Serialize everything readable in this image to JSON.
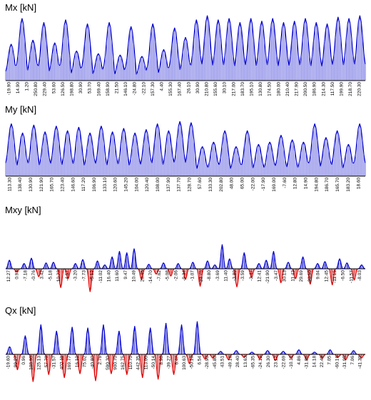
{
  "colors": {
    "positive": "#0000cc",
    "negative": "#dd0000",
    "axis": "#000000"
  },
  "chart_data": [
    {
      "type": "area",
      "title": "Mx [kN]",
      "positive_color": "#0000cc",
      "negative_color": "#dd0000",
      "labels": [
        "-19.90",
        "14.90",
        "1.20",
        "250.80",
        "229.40",
        "53.60",
        "126.50",
        "198.80",
        "30.90",
        "53.70",
        "169.40",
        "158.90",
        "21.50",
        "146.10",
        "-24.80",
        "-22.10",
        "157.30",
        "4.40",
        "155.30",
        "167.40",
        "26.10",
        "30.90",
        "210.80",
        "155.60",
        "30.10",
        "217.00",
        "183.70",
        "195.10",
        "130.80",
        "174.50",
        "180.00",
        "210.40",
        "217.90",
        "200.50",
        "186.90",
        "214.30",
        "117.50",
        "199.90",
        "218.70",
        "220.30"
      ],
      "peaks": [
        135,
        230,
        150,
        215,
        140,
        225,
        110,
        210,
        100,
        215,
        95,
        200,
        90,
        210,
        115,
        195,
        160,
        225,
        240,
        225,
        230,
        215,
        230,
        220,
        230,
        215,
        220,
        230,
        215,
        210,
        235,
        230,
        240
      ]
    },
    {
      "type": "area",
      "title": "My [kN]",
      "positive_color": "#0000cc",
      "negative_color": "#dd0000",
      "labels": [
        "113.30",
        "138.40",
        "130.90",
        "121.90",
        "165.70",
        "123.40",
        "146.60",
        "117.20",
        "106.90",
        "133.10",
        "120.60",
        "145.20",
        "104.00",
        "120.40",
        "108.00",
        "137.90",
        "137.70",
        "128.70",
        "57.60",
        "133.30",
        "202.80",
        "48.00",
        "65.00",
        "-22.00",
        "-17.90",
        "169.00",
        "-7.60",
        "12.80",
        "14.90",
        "194.80",
        "186.70",
        "165.70",
        "183.20",
        "18.60"
      ],
      "peaks": [
        230,
        190,
        225,
        195,
        220,
        200,
        215,
        190,
        220,
        195,
        210,
        190,
        205,
        230,
        200,
        240,
        235,
        130,
        150,
        200,
        130,
        200,
        140,
        150,
        180,
        160,
        150,
        230,
        170,
        200,
        140,
        230
      ]
    },
    {
      "type": "area",
      "title": "Mxy [kN]",
      "positive_color": "#0000cc",
      "negative_color": "#dd0000",
      "labels": [
        "12.27",
        "0.93",
        "-7.18",
        "-0.76",
        "3.42",
        "-5.18",
        "10.23",
        "-4.57",
        "-3.20",
        "-7.73",
        "-5.12",
        "-11.02",
        "16.40",
        "11.60",
        "9.47",
        "10.49",
        "20.45",
        "-14.70",
        "-7.62",
        "-5.08",
        "-2.06",
        "-9.34",
        "-1.07",
        "-21.75",
        "-8.80",
        "-3.69",
        "11.40",
        "-3.80",
        "-3.59",
        "-3.47",
        "12.41",
        "-21.90",
        "-3.47",
        "30.13",
        "11.43",
        "29.69",
        "-20.50",
        "9.04",
        "12.45",
        "-11.15",
        "-6.50",
        "-11.57",
        "-8.03"
      ],
      "peaks": [
        1.3,
        -0.5,
        0.8,
        1.6,
        -1.2,
        0.9,
        1.0,
        -2.8,
        -1.5,
        0.8,
        1.4,
        -3.4,
        1.2,
        0.6,
        1.8,
        2.6,
        2.4,
        3.0,
        -1.6,
        0.7,
        -0.8,
        0.9,
        -1.1,
        0.8,
        -1.6,
        1.0,
        -2.6,
        1.2,
        0.6,
        3.6,
        1.5,
        -2.7,
        2.4,
        -1.3,
        0.8,
        1.3,
        2.6,
        -2.1,
        1.0,
        -1.5,
        1.8,
        -2.3,
        0.8,
        1.1,
        -2.4,
        1.5,
        0.9,
        -1.7,
        0.6
      ]
    },
    {
      "type": "area",
      "title": "Qx [kN]",
      "positive_color": "#0000cc",
      "negative_color": "#dd0000",
      "labels": [
        "-19.60",
        "99.27",
        "0.96",
        "108.90",
        "125.13",
        "57.70",
        "-31.57",
        "402.11",
        "169.77",
        "16.10",
        "75.02",
        "-40.80",
        "2.76",
        "590.30",
        "900.70",
        "162.75",
        "110.70",
        "442.35",
        "113.00",
        "-50.14",
        "8.98",
        "-39.27",
        "6.47",
        "100.63",
        "-50.10",
        "6.54",
        "-28.90",
        "-45.80",
        "43.51",
        "-49.16",
        "28.40",
        "13.63",
        "-65.35",
        "-24.19",
        "26.30",
        "23.12",
        "-22.69",
        "-10.11",
        "4.86",
        "-31.86",
        "14.18",
        "22.49",
        "7.05",
        "-60.16",
        "-31.95",
        "7.06",
        "-41.30"
      ],
      "peaks": [
        1.0,
        -2.0,
        2.4,
        -3.5,
        3.8,
        -2.6,
        3.0,
        -3.0,
        3.5,
        -2.5,
        3.4,
        -3.4,
        3.8,
        -2.5,
        3.0,
        -2.6,
        3.6,
        -3.0,
        3.4,
        -3.2,
        4.0,
        -2.6,
        3.8,
        -1.2,
        4.2,
        -0.6,
        -0.5,
        0.4,
        -0.7,
        0.5,
        -0.4,
        0.3,
        -0.6,
        0.5,
        -0.8,
        0.4,
        -0.5,
        0.6,
        -0.7,
        0.3,
        -0.5,
        0.6,
        -0.4,
        -0.7,
        0.5,
        -0.5
      ]
    }
  ]
}
